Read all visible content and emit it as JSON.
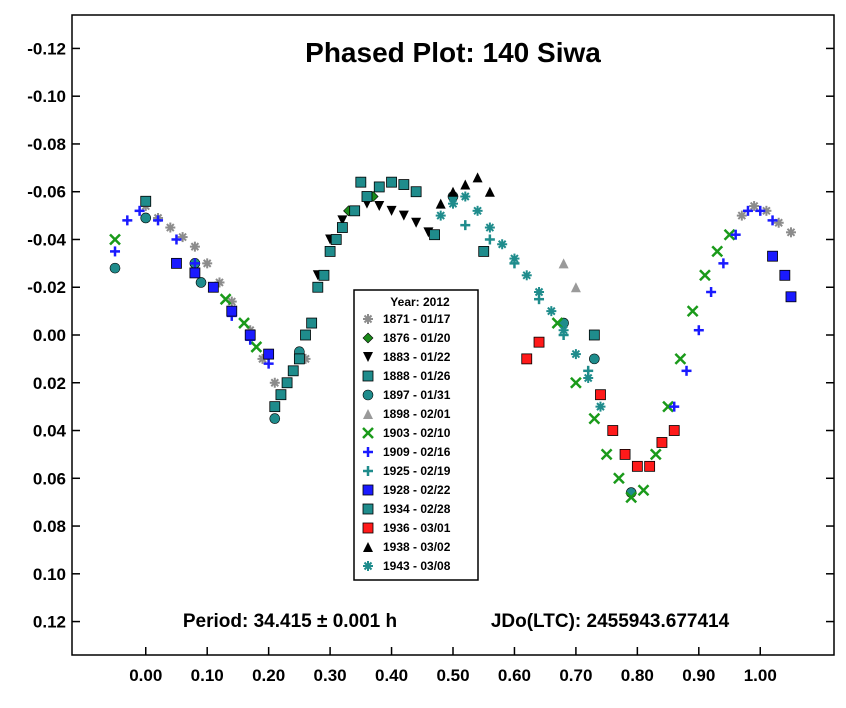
{
  "chart_data": {
    "type": "scatter",
    "title": "Phased Plot: 140 Siwa",
    "footer_period": "Period: 34.415 ± 0.001 h",
    "footer_epoch": "JDo(LTC): 2455943.677414",
    "xlabel": "",
    "ylabel": "",
    "xlim": [
      -0.12,
      1.12
    ],
    "ylim": [
      -0.134,
      0.134
    ],
    "y_inverted": true,
    "grid": false,
    "x_ticks": [
      "0.00",
      "0.10",
      "0.20",
      "0.30",
      "0.40",
      "0.50",
      "0.60",
      "0.70",
      "0.80",
      "0.90",
      "1.00"
    ],
    "y_ticks": [
      "-0.12",
      "-0.10",
      "-0.08",
      "-0.06",
      "-0.04",
      "-0.02",
      "0.00",
      "0.02",
      "0.04",
      "0.06",
      "0.08",
      "0.10",
      "0.12"
    ],
    "legend": {
      "title": "Year: 2012",
      "position": "center",
      "entries": [
        {
          "label": "1871 - 01/17",
          "marker": "asterisk",
          "color": "#8c8c8c"
        },
        {
          "label": "1876 - 01/20",
          "marker": "diamond",
          "color": "#1a8a1a"
        },
        {
          "label": "1883 - 01/22",
          "marker": "triangle-down",
          "color": "#000000"
        },
        {
          "label": "1888 - 01/26",
          "marker": "square",
          "color": "#1f8c8c"
        },
        {
          "label": "1897 - 01/31",
          "marker": "circle",
          "color": "#1f8c8c"
        },
        {
          "label": "1898 - 02/01",
          "marker": "triangle-up",
          "color": "#9a9a9a"
        },
        {
          "label": "1903 - 02/10",
          "marker": "x",
          "color": "#1a9a1a"
        },
        {
          "label": "1909 - 02/16",
          "marker": "plus",
          "color": "#1a1aff"
        },
        {
          "label": "1925 - 02/19",
          "marker": "plus",
          "color": "#1f8c8c"
        },
        {
          "label": "1928 - 02/22",
          "marker": "square",
          "color": "#1a1aff"
        },
        {
          "label": "1934 - 02/28",
          "marker": "square",
          "color": "#1f8c8c"
        },
        {
          "label": "1936 - 03/01",
          "marker": "square",
          "color": "#ff1a1a"
        },
        {
          "label": "1938 - 03/02",
          "marker": "triangle-up",
          "color": "#000000"
        },
        {
          "label": "1943 - 03/08",
          "marker": "asterisk",
          "color": "#1f8c8c"
        }
      ]
    },
    "series": [
      {
        "name": "1871 - 01/17",
        "marker": "asterisk",
        "color": "#8c8c8c",
        "x": [
          0.0,
          0.02,
          0.04,
          0.06,
          0.08,
          0.1,
          0.12,
          0.14,
          0.17,
          0.19,
          0.21,
          0.24,
          0.26,
          0.97,
          0.99,
          1.01,
          1.03,
          1.05
        ],
        "y": [
          -0.054,
          -0.049,
          -0.045,
          -0.041,
          -0.037,
          -0.03,
          -0.022,
          -0.014,
          -0.002,
          0.01,
          0.02,
          0.015,
          0.01,
          -0.05,
          -0.054,
          -0.052,
          -0.047,
          -0.043
        ]
      },
      {
        "name": "1876 - 01/20",
        "marker": "diamond",
        "color": "#1a8a1a",
        "x": [
          0.35,
          0.37,
          0.33
        ],
        "y": [
          -0.064,
          -0.058,
          -0.052
        ]
      },
      {
        "name": "1883 - 01/22",
        "marker": "triangle-down",
        "color": "#000000",
        "x": [
          0.28,
          0.3,
          0.32,
          0.34,
          0.36,
          0.38,
          0.4,
          0.42,
          0.44,
          0.46
        ],
        "y": [
          -0.025,
          -0.04,
          -0.048,
          -0.052,
          -0.055,
          -0.054,
          -0.052,
          -0.05,
          -0.047,
          -0.043
        ]
      },
      {
        "name": "1888 - 01/26",
        "marker": "square",
        "color": "#1f8c8c",
        "x": [
          0.22,
          0.24,
          0.26,
          0.28,
          0.3,
          0.32,
          0.34,
          0.36,
          0.38,
          0.4,
          0.42,
          0.44,
          0.35,
          0.0
        ],
        "y": [
          0.025,
          0.015,
          0.0,
          -0.02,
          -0.035,
          -0.045,
          -0.052,
          -0.058,
          -0.062,
          -0.064,
          -0.063,
          -0.06,
          -0.064,
          -0.056
        ]
      },
      {
        "name": "1897 - 01/31",
        "marker": "circle",
        "color": "#1f8c8c",
        "x": [
          -0.05,
          0.0,
          0.08,
          0.09,
          0.21,
          0.25,
          0.5,
          0.68,
          0.73,
          0.79
        ],
        "y": [
          -0.028,
          -0.049,
          -0.03,
          -0.022,
          0.035,
          0.007,
          -0.058,
          -0.005,
          0.01,
          0.066
        ]
      },
      {
        "name": "1898 - 02/01",
        "marker": "triangle-up",
        "color": "#9a9a9a",
        "x": [
          0.68,
          0.7
        ],
        "y": [
          -0.03,
          -0.02
        ]
      },
      {
        "name": "1903 - 02/10",
        "marker": "x",
        "color": "#1a9a1a",
        "x": [
          -0.05,
          0.13,
          0.16,
          0.18,
          0.67,
          0.7,
          0.73,
          0.75,
          0.77,
          0.79,
          0.81,
          0.83,
          0.85,
          0.87,
          0.89,
          0.91,
          0.93,
          0.95
        ],
        "y": [
          -0.04,
          -0.015,
          -0.005,
          0.005,
          -0.005,
          0.02,
          0.035,
          0.05,
          0.06,
          0.068,
          0.065,
          0.05,
          0.03,
          0.01,
          -0.01,
          -0.025,
          -0.035,
          -0.042
        ]
      },
      {
        "name": "1909 - 02/16",
        "marker": "plus",
        "color": "#1a1aff",
        "x": [
          -0.05,
          -0.03,
          -0.01,
          0.02,
          0.05,
          0.08,
          0.11,
          0.14,
          0.17,
          0.2,
          0.86,
          0.88,
          0.9,
          0.92,
          0.94,
          0.96,
          0.98,
          1.0,
          1.02
        ],
        "y": [
          -0.035,
          -0.048,
          -0.052,
          -0.048,
          -0.04,
          -0.03,
          -0.02,
          -0.008,
          0.002,
          0.012,
          0.03,
          0.015,
          -0.002,
          -0.018,
          -0.03,
          -0.042,
          -0.052,
          -0.052,
          -0.048
        ]
      },
      {
        "name": "1925 - 02/19",
        "marker": "plus",
        "color": "#1f8c8c",
        "x": [
          0.52,
          0.56,
          0.6,
          0.64,
          0.68,
          0.72
        ],
        "y": [
          -0.046,
          -0.04,
          -0.03,
          -0.015,
          0.0,
          0.015
        ]
      },
      {
        "name": "1928 - 02/22",
        "marker": "square",
        "color": "#1a1aff",
        "x": [
          0.05,
          0.08,
          0.11,
          0.14,
          0.17,
          0.2,
          1.02,
          1.04,
          1.05
        ],
        "y": [
          -0.03,
          -0.026,
          -0.02,
          -0.01,
          0.0,
          0.008,
          -0.033,
          -0.025,
          -0.016
        ]
      },
      {
        "name": "1934 - 02/28",
        "marker": "square",
        "color": "#1f8c8c",
        "x": [
          0.21,
          0.23,
          0.25,
          0.27,
          0.29,
          0.31,
          0.47,
          0.55,
          0.73
        ],
        "y": [
          0.03,
          0.02,
          0.01,
          -0.005,
          -0.025,
          -0.04,
          -0.042,
          -0.035,
          0.0
        ]
      },
      {
        "name": "1936 - 03/01",
        "marker": "square",
        "color": "#ff1a1a",
        "x": [
          0.62,
          0.64,
          0.74,
          0.76,
          0.78,
          0.8,
          0.82,
          0.84,
          0.86
        ],
        "y": [
          0.01,
          0.003,
          0.025,
          0.04,
          0.05,
          0.055,
          0.055,
          0.045,
          0.04
        ]
      },
      {
        "name": "1938 - 03/02",
        "marker": "triangle-up",
        "color": "#000000",
        "x": [
          0.48,
          0.5,
          0.52,
          0.54,
          0.56
        ],
        "y": [
          -0.055,
          -0.06,
          -0.063,
          -0.066,
          -0.06
        ]
      },
      {
        "name": "1943 - 03/08",
        "marker": "asterisk",
        "color": "#1f8c8c",
        "x": [
          0.48,
          0.5,
          0.52,
          0.54,
          0.56,
          0.58,
          0.6,
          0.62,
          0.64,
          0.66,
          0.68,
          0.7,
          0.72,
          0.74
        ],
        "y": [
          -0.05,
          -0.055,
          -0.058,
          -0.052,
          -0.045,
          -0.038,
          -0.032,
          -0.025,
          -0.018,
          -0.01,
          -0.002,
          0.008,
          0.018,
          0.03
        ]
      }
    ]
  }
}
